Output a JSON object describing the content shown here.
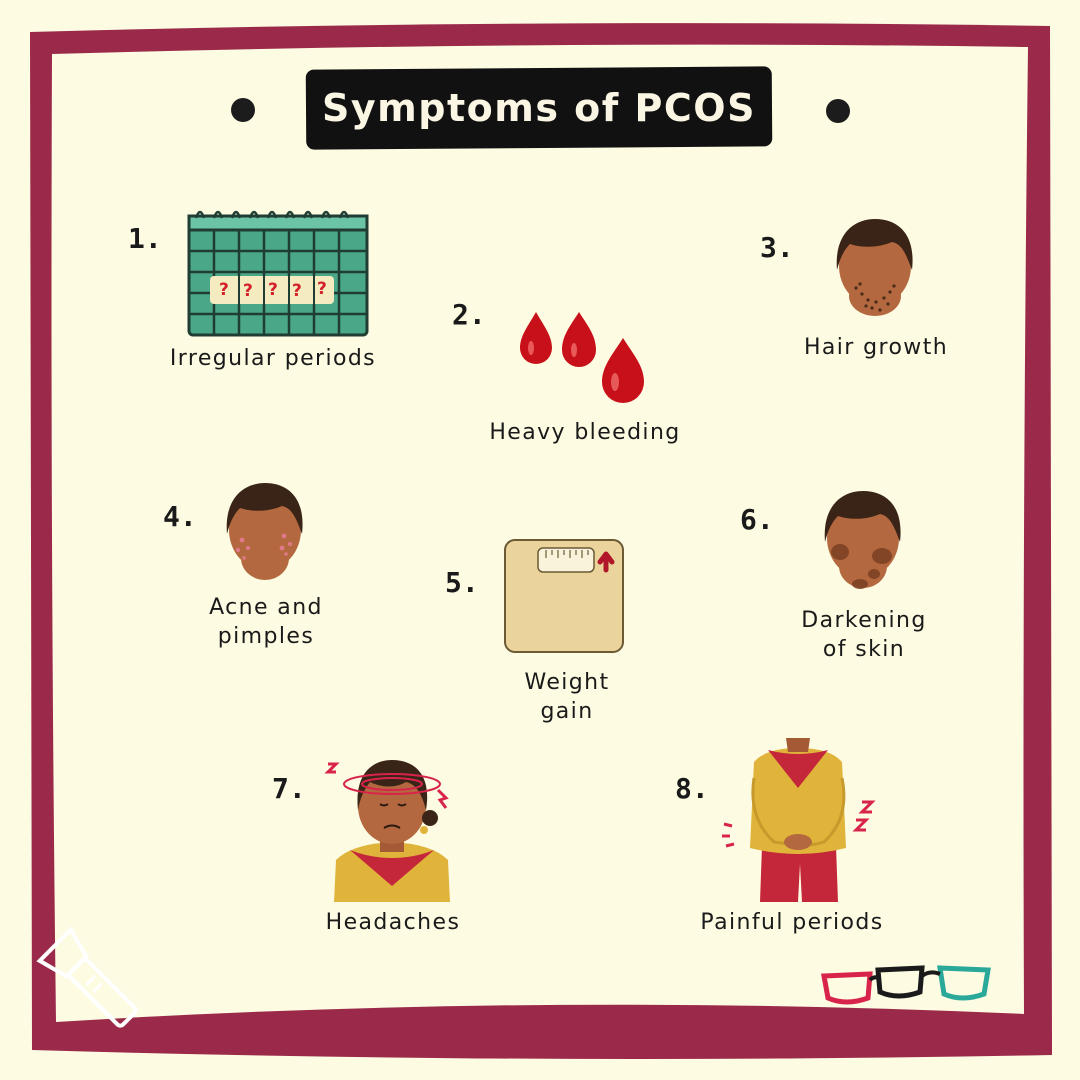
{
  "title": "Symptoms of PCOS",
  "colors": {
    "background": "#fdfbe2",
    "frame": "#9b2a4a",
    "banner": "#111111",
    "blood": "#c8101a",
    "calendar": "#4aa888",
    "skin": "#b4683f",
    "hair": "#3a2417",
    "scale": "#ead49c",
    "mustard": "#e0b33a",
    "crimson": "#c5273a"
  },
  "symptoms": [
    {
      "number": "1.",
      "lines": [
        "Irregular periods"
      ],
      "icon": "calendar-icon"
    },
    {
      "number": "2.",
      "lines": [
        "Heavy bleeding"
      ],
      "icon": "blood-drops-icon"
    },
    {
      "number": "3.",
      "lines": [
        "Hair growth"
      ],
      "icon": "face-hair-growth-icon"
    },
    {
      "number": "4.",
      "lines": [
        "Acne and",
        "pimples"
      ],
      "icon": "face-acne-icon"
    },
    {
      "number": "5.",
      "lines": [
        "Weight",
        "gain"
      ],
      "icon": "weighing-scale-icon"
    },
    {
      "number": "6.",
      "lines": [
        "Darkening",
        "of skin"
      ],
      "icon": "face-dark-patches-icon"
    },
    {
      "number": "7.",
      "lines": [
        "Headaches"
      ],
      "icon": "woman-headache-icon"
    },
    {
      "number": "8.",
      "lines": [
        "Painful periods"
      ],
      "icon": "woman-cramps-icon"
    }
  ],
  "calendar_marks": [
    "?",
    "?",
    "?",
    "?",
    "?"
  ],
  "decorations": [
    "flashlight-icon",
    "glasses-logo-icon"
  ]
}
